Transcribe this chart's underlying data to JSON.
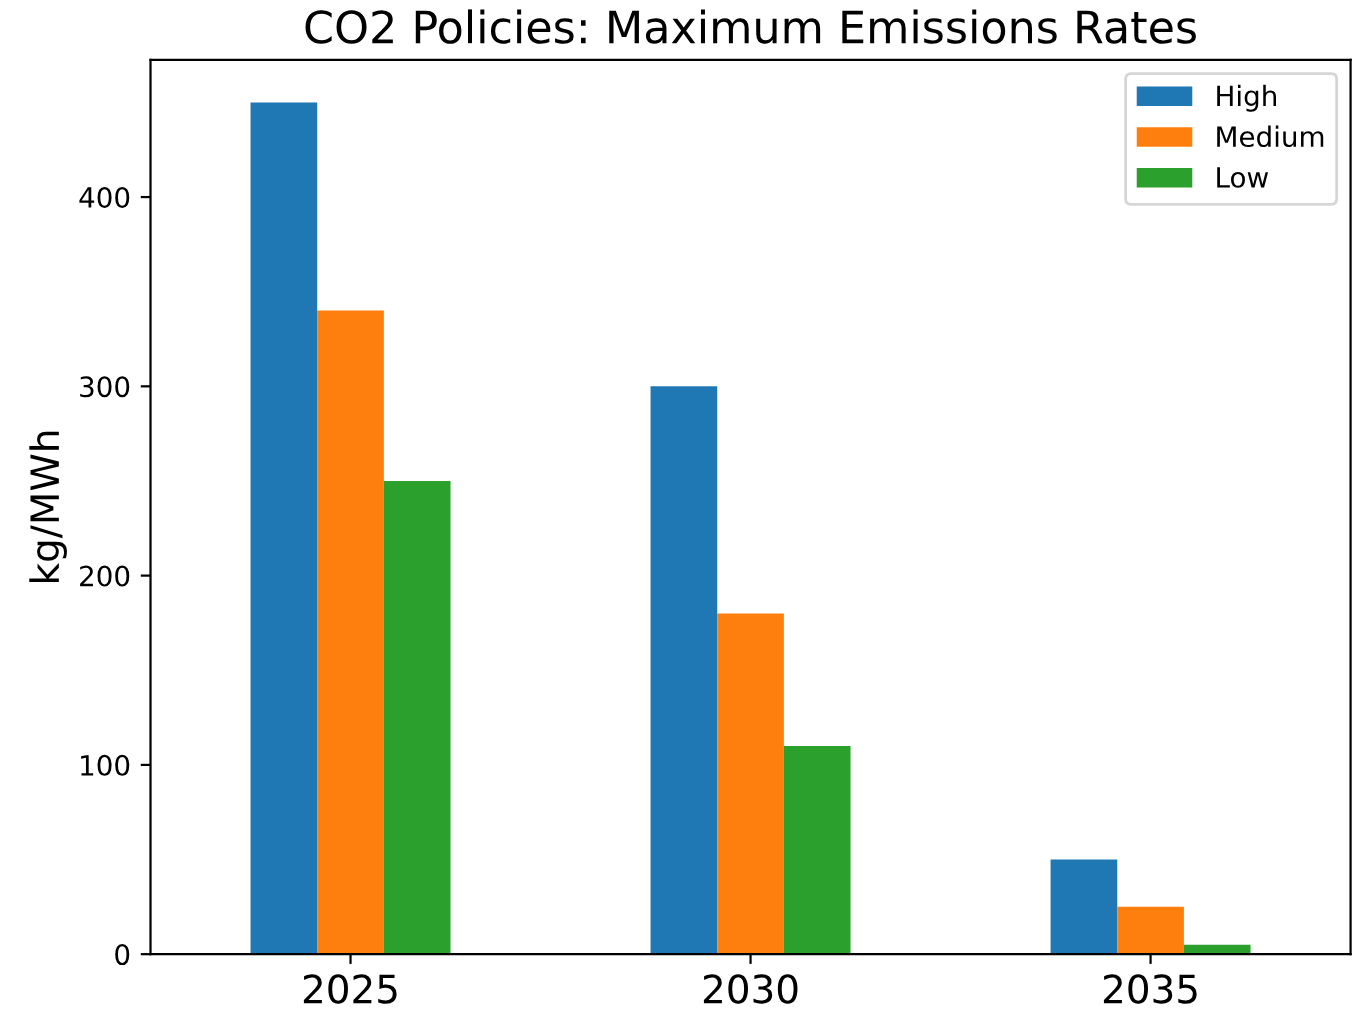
{
  "chart_data": {
    "type": "bar",
    "title": "CO2 Policies: Maximum Emissions Rates",
    "ylabel": "kg/MWh",
    "categories": [
      "2025",
      "2030",
      "2035"
    ],
    "series": [
      {
        "name": "High",
        "color": "#1f77b4",
        "values": [
          450,
          300,
          50
        ]
      },
      {
        "name": "Medium",
        "color": "#ff7f0e",
        "values": [
          340,
          180,
          25
        ]
      },
      {
        "name": "Low",
        "color": "#2ca02c",
        "values": [
          250,
          110,
          5
        ]
      }
    ],
    "ylim": [
      0,
      472.5
    ],
    "yticks": [
      0,
      100,
      200,
      300,
      400
    ],
    "grid": false,
    "legend": "top right"
  }
}
